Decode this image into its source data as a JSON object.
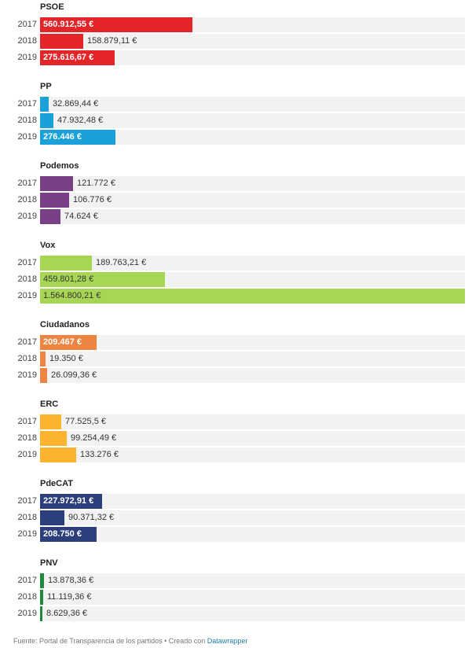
{
  "chart_data": {
    "type": "bar",
    "orientation": "horizontal",
    "title": "",
    "max_value": 1564800.21,
    "groups": [
      {
        "name": "PSOE",
        "color": "#e3252a",
        "rows": [
          {
            "year": "2017",
            "value": 560912.55,
            "label": "560.912,55 €",
            "inside": true
          },
          {
            "year": "2018",
            "value": 158879.11,
            "label": "158.879,11 €",
            "inside": false
          },
          {
            "year": "2019",
            "value": 275616.67,
            "label": "275.616,67 €",
            "inside": true
          }
        ]
      },
      {
        "name": "PP",
        "color": "#1aa1d9",
        "rows": [
          {
            "year": "2017",
            "value": 32869.44,
            "label": "32.869,44 €",
            "inside": false
          },
          {
            "year": "2018",
            "value": 47932.48,
            "label": "47.932,48 €",
            "inside": false
          },
          {
            "year": "2019",
            "value": 276446,
            "label": "276.446 €",
            "inside": true
          }
        ]
      },
      {
        "name": "Podemos",
        "color": "#7b3f86",
        "rows": [
          {
            "year": "2017",
            "value": 121772,
            "label": "121.772 €",
            "inside": false
          },
          {
            "year": "2018",
            "value": 106776,
            "label": "106.776 €",
            "inside": false
          },
          {
            "year": "2019",
            "value": 74624,
            "label": "74.624 €",
            "inside": false
          }
        ]
      },
      {
        "name": "Vox",
        "color": "#a6d654",
        "rows": [
          {
            "year": "2017",
            "value": 189763.21,
            "label": "189.763,21 €",
            "inside": false
          },
          {
            "year": "2018",
            "value": 459801.28,
            "label": "459.801,28 €",
            "inside": true,
            "dark": true
          },
          {
            "year": "2019",
            "value": 1564800.21,
            "label": "1.564.800,21 €",
            "inside": true,
            "dark": true
          }
        ]
      },
      {
        "name": "Ciudadanos",
        "color": "#ee8442",
        "rows": [
          {
            "year": "2017",
            "value": 209467,
            "label": "209.467 €",
            "inside": true
          },
          {
            "year": "2018",
            "value": 19350,
            "label": "19.350 €",
            "inside": false
          },
          {
            "year": "2019",
            "value": 26099.36,
            "label": "26.099,36 €",
            "inside": false
          }
        ]
      },
      {
        "name": "ERC",
        "color": "#fbb430",
        "rows": [
          {
            "year": "2017",
            "value": 77525.5,
            "label": "77.525,5 €",
            "inside": false
          },
          {
            "year": "2018",
            "value": 99254.49,
            "label": "99.254,49 €",
            "inside": false
          },
          {
            "year": "2019",
            "value": 133276,
            "label": "133.276 €",
            "inside": false
          }
        ]
      },
      {
        "name": "PdeCAT",
        "color": "#2c3e7c",
        "rows": [
          {
            "year": "2017",
            "value": 227972.91,
            "label": "227.972,91 €",
            "inside": true
          },
          {
            "year": "2018",
            "value": 90371.32,
            "label": "90.371,32 €",
            "inside": false
          },
          {
            "year": "2019",
            "value": 208750,
            "label": "208.750 €",
            "inside": true
          }
        ]
      },
      {
        "name": "PNV",
        "color": "#1e8a3e",
        "rows": [
          {
            "year": "2017",
            "value": 13878.36,
            "label": "13.878,36 €",
            "inside": false
          },
          {
            "year": "2018",
            "value": 11119.36,
            "label": "11.119,36 €",
            "inside": false
          },
          {
            "year": "2019",
            "value": 8629.36,
            "label": "8.629,36 €",
            "inside": false
          }
        ]
      }
    ]
  },
  "footer": {
    "source": "Fuente: Portal de Transparencia de los partidos • Creado con ",
    "credit": "Datawrapper"
  }
}
